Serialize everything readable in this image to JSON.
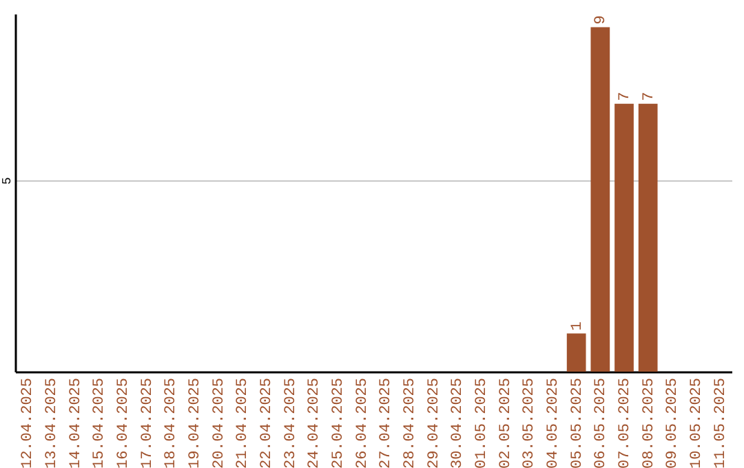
{
  "chart_data": {
    "type": "bar",
    "categories": [
      "12.04.2025",
      "13.04.2025",
      "14.04.2025",
      "15.04.2025",
      "16.04.2025",
      "17.04.2025",
      "18.04.2025",
      "19.04.2025",
      "20.04.2025",
      "21.04.2025",
      "22.04.2025",
      "23.04.2025",
      "24.04.2025",
      "25.04.2025",
      "26.04.2025",
      "27.04.2025",
      "28.04.2025",
      "29.04.2025",
      "30.04.2025",
      "01.05.2025",
      "02.05.2025",
      "03.05.2025",
      "04.05.2025",
      "05.05.2025",
      "06.05.2025",
      "07.05.2025",
      "08.05.2025",
      "09.05.2025",
      "10.05.2025",
      "11.05.2025"
    ],
    "values": [
      null,
      null,
      null,
      null,
      null,
      null,
      null,
      null,
      null,
      null,
      null,
      null,
      null,
      null,
      null,
      null,
      null,
      null,
      null,
      null,
      null,
      null,
      null,
      1,
      9,
      7,
      7,
      null,
      null,
      null
    ],
    "value_labels": [
      null,
      null,
      null,
      null,
      null,
      null,
      null,
      null,
      null,
      null,
      null,
      null,
      null,
      null,
      null,
      null,
      null,
      null,
      null,
      null,
      null,
      null,
      null,
      "1",
      "9",
      "7",
      "7",
      null,
      null,
      null
    ],
    "color": "#a0522d",
    "ylim": [
      0,
      9.35
    ],
    "yticks": [
      5
    ],
    "grid": "y"
  }
}
